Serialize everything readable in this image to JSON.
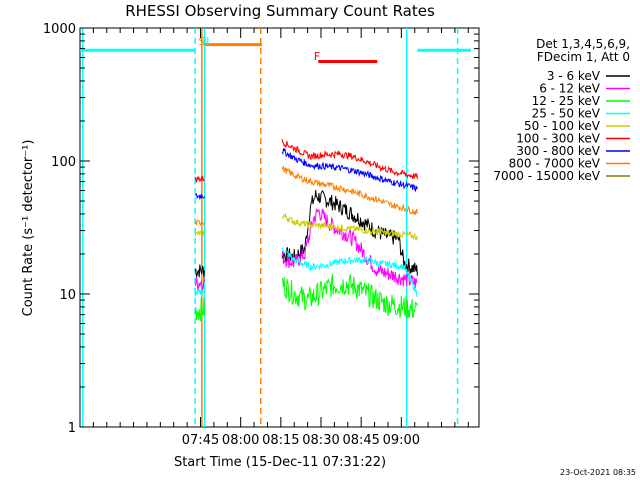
{
  "chart_data": {
    "type": "line",
    "title": "RHESSI Observing Summary Count Rates",
    "xlabel": "Start Time (15-Dec-11 07:31:22)",
    "ylabel": "Count Rate (s⁻¹ detector⁻¹)",
    "y_scale": "log",
    "ylim": [
      1,
      1000
    ],
    "xlim_minutes_after_0730": [
      0,
      149
    ],
    "x_tick_labels": [
      "07:45",
      "08:00",
      "08:15",
      "08:30",
      "08:45",
      "09:00"
    ],
    "x_tick_minutes": [
      45,
      60,
      75,
      90,
      105,
      120
    ],
    "y_tick_labels": [
      "1",
      "10",
      "100",
      "1000"
    ],
    "y_ticks": [
      1,
      10,
      100,
      1000
    ],
    "grid": false,
    "legend_position": "right",
    "legend_header": [
      "Det 1,3,4,5,6,9,",
      "FDecim 1, Att 0"
    ],
    "footer_date": "23-Oct-2021 08:35",
    "segments_minutes": [
      [
        43,
        46.5
      ],
      [
        75.5,
        126
      ]
    ],
    "series": [
      {
        "name": "3 - 6 keV",
        "color": "#000000",
        "points": [
          [
            43,
            15
          ],
          [
            46.5,
            15
          ],
          [
            75.5,
            20
          ],
          [
            80,
            19
          ],
          [
            84,
            22
          ],
          [
            86,
            45
          ],
          [
            88,
            55
          ],
          [
            91,
            52
          ],
          [
            95,
            48
          ],
          [
            100,
            42
          ],
          [
            105,
            36
          ],
          [
            110,
            30
          ],
          [
            115,
            27
          ],
          [
            119,
            26
          ],
          [
            121,
            17
          ],
          [
            126,
            15
          ]
        ]
      },
      {
        "name": "6 - 12 keV",
        "color": "#ff00ff",
        "points": [
          [
            43,
            12
          ],
          [
            46.5,
            12.5
          ],
          [
            75.5,
            19
          ],
          [
            80,
            17
          ],
          [
            84,
            20
          ],
          [
            87,
            36
          ],
          [
            89,
            42
          ],
          [
            93,
            34
          ],
          [
            97,
            30
          ],
          [
            101,
            27
          ],
          [
            104,
            23
          ],
          [
            107,
            19
          ],
          [
            111,
            15
          ],
          [
            116,
            14
          ],
          [
            121,
            13
          ],
          [
            126,
            12
          ]
        ]
      },
      {
        "name": "12 - 25 keV",
        "color": "#00ff00",
        "points": [
          [
            43,
            7.5
          ],
          [
            46.5,
            7.8
          ],
          [
            75.5,
            12
          ],
          [
            80,
            10
          ],
          [
            85,
            9
          ],
          [
            89,
            10
          ],
          [
            94,
            11.5
          ],
          [
            99,
            12
          ],
          [
            104,
            11
          ],
          [
            109,
            9.5
          ],
          [
            114,
            8.5
          ],
          [
            121,
            8
          ],
          [
            126,
            7.5
          ]
        ]
      },
      {
        "name": "25 - 50 keV",
        "color": "#00ffff",
        "points": [
          [
            43,
            10
          ],
          [
            46.5,
            10.5
          ],
          [
            75.5,
            22
          ],
          [
            80,
            18
          ],
          [
            86,
            16
          ],
          [
            92,
            16.5
          ],
          [
            97,
            17.5
          ],
          [
            102,
            18
          ],
          [
            107,
            18
          ],
          [
            112,
            17
          ],
          [
            117,
            16.5
          ],
          [
            121,
            16
          ],
          [
            126,
            10
          ]
        ]
      },
      {
        "name": "50 - 100 keV",
        "color": "#cccc00",
        "points": [
          [
            43,
            28
          ],
          [
            46.5,
            29
          ],
          [
            75.5,
            39
          ],
          [
            80,
            35
          ],
          [
            86,
            33
          ],
          [
            92,
            32.5
          ],
          [
            98,
            31.5
          ],
          [
            104,
            30.5
          ],
          [
            110,
            29.5
          ],
          [
            116,
            28.5
          ],
          [
            121,
            28
          ],
          [
            126,
            27
          ]
        ]
      },
      {
        "name": "100 - 300 keV",
        "color": "#ff0000",
        "points": [
          [
            43,
            73
          ],
          [
            46.5,
            74
          ],
          [
            75.5,
            140
          ],
          [
            80,
            125
          ],
          [
            86,
            108
          ],
          [
            92,
            112
          ],
          [
            97,
            113
          ],
          [
            102,
            108
          ],
          [
            107,
            99
          ],
          [
            112,
            90
          ],
          [
            117,
            83
          ],
          [
            121,
            80
          ],
          [
            126,
            76
          ]
        ]
      },
      {
        "name": "300 - 800 keV",
        "color": "#0000ff",
        "points": [
          [
            43,
            54
          ],
          [
            46.5,
            55
          ],
          [
            75.5,
            120
          ],
          [
            80,
            105
          ],
          [
            86,
            93
          ],
          [
            92,
            91
          ],
          [
            98,
            88
          ],
          [
            104,
            83
          ],
          [
            110,
            76
          ],
          [
            116,
            70
          ],
          [
            121,
            66
          ],
          [
            126,
            62
          ]
        ]
      },
      {
        "name": "800 - 7000 keV",
        "color": "#ff8000",
        "points": [
          [
            43,
            34
          ],
          [
            46.5,
            35
          ],
          [
            75.5,
            88
          ],
          [
            80,
            78
          ],
          [
            86,
            70
          ],
          [
            92,
            66
          ],
          [
            98,
            62
          ],
          [
            104,
            57
          ],
          [
            110,
            52
          ],
          [
            116,
            47
          ],
          [
            121,
            44
          ],
          [
            126,
            41
          ]
        ]
      },
      {
        "name": "7000 - 15000 keV",
        "color": "#808000",
        "points": []
      }
    ],
    "annotations": [
      {
        "text": "S",
        "color": "#ff8000",
        "x_minute": 45.5
      },
      {
        "text": "N",
        "color": "#00ffff",
        "x_minute": 47.0
      },
      {
        "text": "F",
        "color": "#ff0000",
        "x_minute": 88.5
      }
    ],
    "bars": [
      {
        "color": "#ff8000",
        "y": 750,
        "x_start": 46.5,
        "x_end": 68
      },
      {
        "color": "#ff0000",
        "y": 560,
        "x_start": 89,
        "x_end": 111
      },
      {
        "color": "#00ffff",
        "y": 680,
        "x_start": 0,
        "x_end": 43
      },
      {
        "color": "#00ffff",
        "y": 680,
        "x_start": 126,
        "x_end": 146
      }
    ],
    "vlines": [
      {
        "minute": 43,
        "color": "#00ffff",
        "dash": true
      },
      {
        "minute": 45.5,
        "color": "#ff8000",
        "dash": false
      },
      {
        "minute": 46.5,
        "color": "#00ffff",
        "dash": false
      },
      {
        "minute": 67.5,
        "color": "#ff8000",
        "dash": true
      },
      {
        "minute": 122,
        "color": "#00ffff",
        "dash": false
      },
      {
        "minute": 141,
        "color": "#00ffff",
        "dash": true
      },
      {
        "minute": 1,
        "color": "#00ffff",
        "dash": false
      }
    ]
  }
}
